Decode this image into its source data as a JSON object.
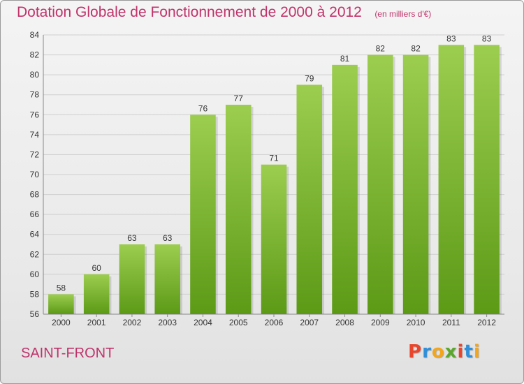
{
  "header": {
    "title": "Dotation Globale de Fonctionnement de 2000 à 2012",
    "unit": "(en milliers d'€)"
  },
  "footer": {
    "commune": "SAINT-FRONT",
    "logo_text": "Proxiti",
    "logo_colors": [
      "#e8452c",
      "#2f8fd8",
      "#f3a61c",
      "#5aa82b",
      "#e8452c",
      "#2f8fd8",
      "#f3a61c"
    ]
  },
  "colors": {
    "title": "#c0336a",
    "bar_top": "#9ccd4f",
    "bar_bottom": "#5c9a16",
    "grid": "#cfcfcf",
    "axis_text": "#333333"
  },
  "chart_data": {
    "type": "bar",
    "title": "Dotation Globale de Fonctionnement de 2000 à 2012",
    "subtitle": "(en milliers d'€)",
    "categories": [
      "2000",
      "2001",
      "2002",
      "2003",
      "2004",
      "2005",
      "2006",
      "2007",
      "2008",
      "2009",
      "2010",
      "2011",
      "2012"
    ],
    "values": [
      58,
      60,
      63,
      63,
      76,
      77,
      71,
      79,
      81,
      82,
      82,
      83,
      83
    ],
    "ylim": [
      56,
      84
    ],
    "yticks": [
      56,
      58,
      60,
      62,
      64,
      66,
      68,
      70,
      72,
      74,
      76,
      78,
      80,
      82,
      84
    ],
    "xlabel": "",
    "ylabel": "",
    "grid": true,
    "data_labels": true
  }
}
